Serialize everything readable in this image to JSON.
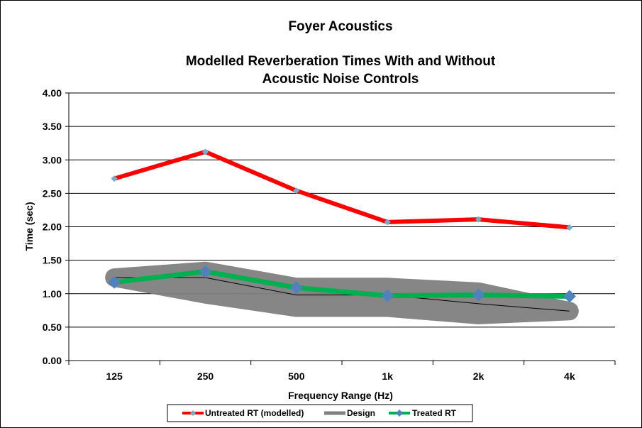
{
  "chart_data": {
    "type": "line",
    "title_lines": [
      "Foyer Acoustics",
      "Modelled Reverberation Times With and Without",
      "Acoustic Noise Controls"
    ],
    "xlabel": "Frequency Range (Hz)",
    "ylabel": "Time (sec)",
    "categories": [
      "125",
      "250",
      "500",
      "1k",
      "2k",
      "4k"
    ],
    "ylim": [
      0,
      4
    ],
    "yticks": [
      "0.00",
      "0.50",
      "1.00",
      "1.50",
      "2.00",
      "2.50",
      "3.00",
      "3.50",
      "4.00"
    ],
    "grid": "horizontal",
    "legend_position": "bottom",
    "series": [
      {
        "name": "Untreated RT (modelled)",
        "values": [
          2.72,
          3.12,
          2.54,
          2.07,
          2.11,
          1.99
        ],
        "color": "#ff0000",
        "marker_color": "#6ab0c8"
      },
      {
        "name": "Design",
        "values": [
          1.24,
          1.24,
          0.98,
          0.98,
          0.85,
          0.74
        ],
        "lower": [
          1.24,
          0.99,
          0.79,
          0.79,
          0.68,
          0.74
        ],
        "upper": [
          1.24,
          1.34,
          1.1,
          1.1,
          1.03,
          0.74
        ],
        "color": "#808080",
        "centre_line_color": "#000000"
      },
      {
        "name": "Treated RT",
        "values": [
          1.17,
          1.33,
          1.09,
          0.97,
          0.98,
          0.96
        ],
        "color": "#00b050",
        "marker_color": "#4f81bd"
      }
    ]
  }
}
